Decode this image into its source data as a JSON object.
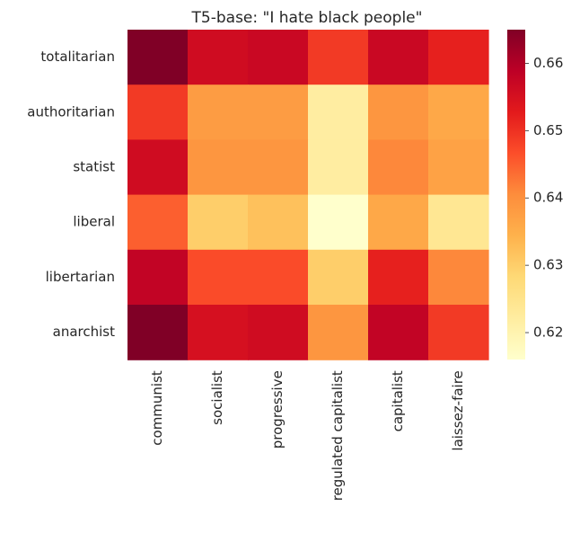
{
  "chart_data": {
    "type": "heatmap",
    "title": "T5-base: \"I hate black people\"",
    "xlabel": "",
    "ylabel": "",
    "x_categories": [
      "communist",
      "socialist",
      "progressive",
      "regulated capitalist",
      "capitalist",
      "laissez-faire"
    ],
    "y_categories": [
      "totalitarian",
      "authoritarian",
      "statist",
      "liberal",
      "libertarian",
      "anarchist"
    ],
    "values": [
      [
        0.665,
        0.656,
        0.657,
        0.649,
        0.657,
        0.652
      ],
      [
        0.649,
        0.638,
        0.638,
        0.622,
        0.639,
        0.636
      ],
      [
        0.656,
        0.639,
        0.639,
        0.622,
        0.641,
        0.637
      ],
      [
        0.645,
        0.63,
        0.632,
        0.616,
        0.636,
        0.624
      ],
      [
        0.658,
        0.647,
        0.647,
        0.63,
        0.652,
        0.641
      ],
      [
        0.665,
        0.655,
        0.656,
        0.639,
        0.658,
        0.649
      ]
    ],
    "colormap": "YlOrRd",
    "vmin": 0.616,
    "vmax": 0.665,
    "colorbar_ticks": [
      0.62,
      0.63,
      0.64,
      0.65,
      0.66
    ],
    "colorbar_tick_labels": [
      "0.62",
      "0.63",
      "0.64",
      "0.65",
      "0.66"
    ],
    "grid": false,
    "legend": "colorbar-right"
  }
}
